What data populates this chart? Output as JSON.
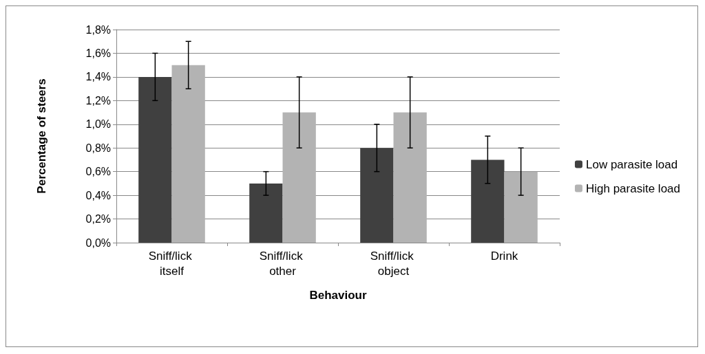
{
  "chart_data": {
    "type": "bar",
    "xlabel": "Behaviour",
    "ylabel": "Percentage of steers",
    "categories": [
      "Sniff/lick itself",
      "Sniff/lick other",
      "Sniff/lick object",
      "Drink"
    ],
    "series": [
      {
        "name": "Low parasite load",
        "color": "#404040",
        "values": [
          1.4,
          0.5,
          0.8,
          0.7
        ],
        "errors": [
          0.2,
          0.1,
          0.2,
          0.2
        ]
      },
      {
        "name": "High parasite load",
        "color": "#b3b3b3",
        "values": [
          1.5,
          1.1,
          1.1,
          0.6
        ],
        "errors": [
          0.2,
          0.3,
          0.3,
          0.2
        ]
      }
    ],
    "ylim": [
      0,
      1.8
    ],
    "yticks": [
      {
        "value": 0,
        "label": "0,0%"
      },
      {
        "value": 0.2,
        "label": "0,2%"
      },
      {
        "value": 0.4,
        "label": "0,4%"
      },
      {
        "value": 0.6,
        "label": "0,6%"
      },
      {
        "value": 0.8,
        "label": "0,8%"
      },
      {
        "value": 1,
        "label": "1,0%"
      },
      {
        "value": 1.2,
        "label": "1,2%"
      },
      {
        "value": 1.4,
        "label": "1,4%"
      },
      {
        "value": 1.6,
        "label": "1,6%"
      },
      {
        "value": 1.8,
        "label": "1,8%"
      }
    ],
    "grid": "y",
    "legend": "right"
  }
}
